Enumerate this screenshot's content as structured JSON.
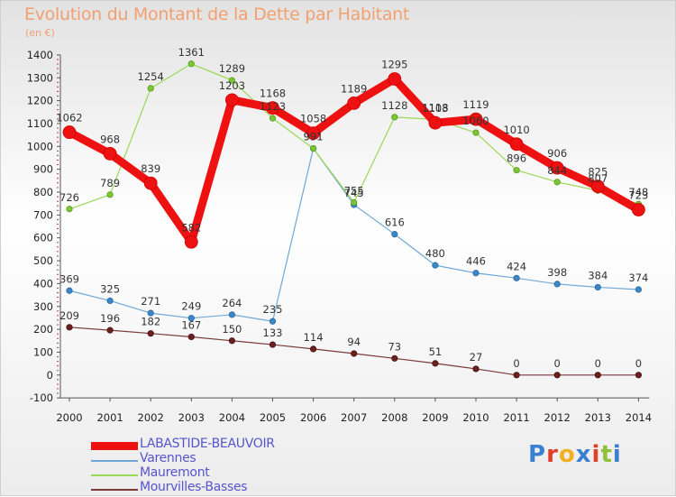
{
  "title": "Evolution du Montant de la Dette par Habitant",
  "unit": "(en €)",
  "logo": "Proxiti",
  "logo_colors": [
    "#3a7fd0",
    "#e0402a",
    "#f0b020",
    "#3a7fd0",
    "#e0402a",
    "#8fc03a",
    "#3a7fd0"
  ],
  "chart_data": {
    "type": "line",
    "title": "Evolution du Montant de la Dette par Habitant",
    "subtitle": "(en €)",
    "x": [
      "2000",
      "2001",
      "2002",
      "2003",
      "2004",
      "2005",
      "2006",
      "2007",
      "2008",
      "2009",
      "2010",
      "2011",
      "2012",
      "2013",
      "2014"
    ],
    "ylim": [
      -100,
      1400
    ],
    "yticks": [
      -100,
      0,
      100,
      200,
      300,
      400,
      500,
      600,
      700,
      800,
      900,
      1000,
      1100,
      1200,
      1300,
      1400
    ],
    "grid": false,
    "legend_position": "bottom-left",
    "series": [
      {
        "name": "LABASTIDE-BEAUVOIR",
        "color": "#ee1111",
        "values": [
          1062,
          968,
          839,
          582,
          1203,
          1168,
          1058,
          1189,
          1295,
          1103,
          1119,
          1010,
          906,
          825,
          723
        ]
      },
      {
        "name": "Varennes",
        "color": "#5599cc",
        "values": [
          369,
          325,
          271,
          249,
          264,
          235,
          991,
          745,
          616,
          480,
          446,
          424,
          398,
          384,
          374
        ]
      },
      {
        "name": "Mauremont",
        "color": "#88cc33",
        "values": [
          726,
          789,
          1254,
          1361,
          1289,
          1123,
          991,
          755,
          1128,
          1118,
          1060,
          896,
          844,
          807,
          748
        ]
      },
      {
        "name": "Mourvilles-Basses",
        "color": "#6b2020",
        "values": [
          209,
          196,
          182,
          167,
          150,
          133,
          114,
          94,
          73,
          51,
          27,
          0,
          0,
          0,
          0
        ]
      }
    ]
  }
}
